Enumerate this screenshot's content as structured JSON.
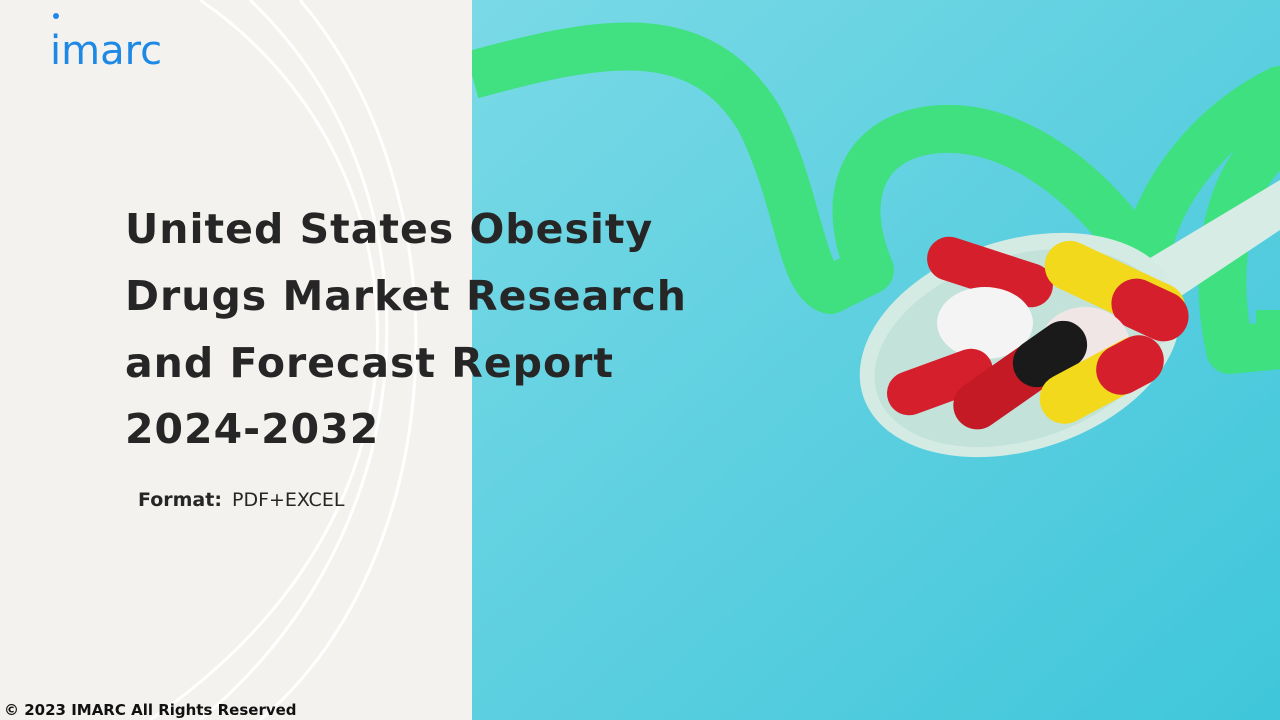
{
  "logo": "imarc",
  "title_lines": [
    "United States Obesity",
    "Drugs Market Research",
    "and Forecast Report",
    "2024-2032"
  ],
  "format": {
    "label": "Format:",
    "value": "PDF+EXCEL"
  },
  "footer": "© 2023 IMARC All Rights Reserved"
}
